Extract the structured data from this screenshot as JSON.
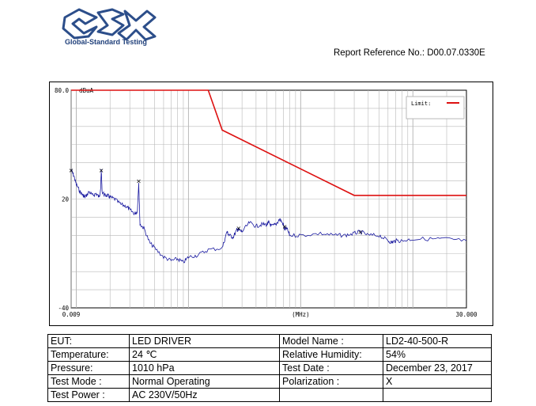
{
  "header": {
    "logo_text": "Global-Standard Testing",
    "report_reference": "Report Reference No.: D00.07.0330E"
  },
  "chart_data": {
    "type": "line",
    "xscale": "log",
    "xlim": [
      0.009,
      30.0
    ],
    "ylim": [
      -40,
      80
    ],
    "ylabel": "dBuA",
    "xlabel": "(MHz)",
    "y_tick_labels": [
      "80.0",
      "20",
      "-40"
    ],
    "y_ticks": [
      80,
      20,
      -40
    ],
    "x_tick_labels": [
      "0.009",
      "(MHz)",
      "30.000"
    ],
    "legend": {
      "label": "Limit:",
      "position": "top-right"
    },
    "colors": {
      "limit": "#dd1111",
      "measurement": "#1a1aa0",
      "grid": "#b8b8b8",
      "marker": "#000000"
    },
    "series": [
      {
        "name": "Limit:",
        "x": [
          0.009,
          0.15,
          0.2,
          3.0,
          30.0
        ],
        "y": [
          80,
          80,
          58,
          22,
          22
        ]
      },
      {
        "x": [
          0.009,
          0.0095,
          0.01,
          0.0108,
          0.0115,
          0.012,
          0.013,
          0.014,
          0.015,
          0.016,
          0.0165,
          0.0167,
          0.017,
          0.018,
          0.019,
          0.02,
          0.022,
          0.025,
          0.028,
          0.03,
          0.033,
          0.035,
          0.036,
          0.037,
          0.04,
          0.045,
          0.05,
          0.06,
          0.07,
          0.08,
          0.09,
          0.1,
          0.12,
          0.15,
          0.2,
          0.22,
          0.23,
          0.25,
          0.27,
          0.28,
          0.3,
          0.35,
          0.4,
          0.45,
          0.5,
          0.52,
          0.55,
          0.6,
          0.65,
          0.7,
          0.72,
          0.75,
          0.8,
          1.0,
          1.5,
          2.0,
          2.5,
          3.0,
          3.4,
          4.0,
          5.0,
          6.0,
          6.5,
          7.0,
          8.0,
          10.0,
          15.0,
          20.0,
          30.0
        ],
        "y": [
          36,
          33,
          28,
          24,
          22,
          21,
          24,
          22,
          23,
          21,
          26,
          36,
          24,
          22,
          22,
          21,
          20,
          17,
          16,
          14,
          12,
          13,
          29,
          6,
          4,
          -4,
          -7,
          -12,
          -14,
          -13,
          -15,
          -12,
          -11,
          -8,
          -7,
          2,
          0,
          -1,
          3,
          3,
          2,
          7,
          5,
          6,
          6,
          7,
          5,
          6,
          9,
          6,
          3,
          4,
          0,
          0,
          1,
          0,
          0,
          1,
          2,
          0,
          0,
          -3,
          -4,
          -3,
          -3,
          -2,
          -2,
          -2,
          -3
        ]
      }
    ],
    "markers": [
      {
        "x": 0.009,
        "y": 36
      },
      {
        "x": 0.0167,
        "y": 36
      },
      {
        "x": 0.036,
        "y": 30
      },
      {
        "x": 0.28,
        "y": 4
      },
      {
        "x": 0.72,
        "y": 5
      },
      {
        "x": 3.4,
        "y": 2
      }
    ]
  },
  "table": {
    "rows": [
      [
        "EUT:",
        "LED DRIVER",
        "Model Name :",
        "LD2-40-500-R"
      ],
      [
        "Temperature:",
        "24 ℃",
        "Relative Humidity:",
        "54%"
      ],
      [
        "Pressure:",
        "1010 hPa",
        "Test Date :",
        "December 23, 2017"
      ],
      [
        "Test Mode :",
        "Normal Operating",
        "Polarization :",
        "X"
      ],
      [
        "Test Power :",
        "AC 230V/50Hz",
        "",
        ""
      ]
    ]
  }
}
